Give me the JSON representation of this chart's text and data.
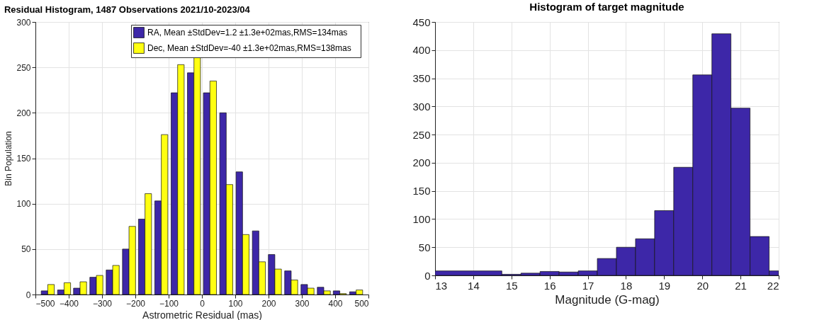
{
  "chart_data": [
    {
      "type": "bar",
      "title": "Residual Histogram, 1487 Observations 2021/10-2023/04",
      "xlabel": "Astrometric Residual (mas)",
      "ylabel": "Bin Population",
      "x": [
        -463,
        -414,
        -366,
        -317,
        -268,
        -219,
        -171,
        -122,
        -73,
        -24,
        24,
        73,
        122,
        171,
        219,
        268,
        317,
        366,
        414,
        463
      ],
      "series": [
        {
          "name": "RA, Mean ±StdDev=1.2   ±1.3e+02mas,RMS=134mas",
          "color": "#3d27a8",
          "values": [
            4,
            5,
            7,
            19,
            27,
            50,
            83,
            103,
            222,
            244,
            222,
            200,
            135,
            70,
            44,
            26,
            11,
            8,
            4,
            3
          ]
        },
        {
          "name": "Dec, Mean  ±StdDev=-40   ±1.3e+02mas,RMS=138mas",
          "color": "#ffff11",
          "values": [
            11,
            13,
            14,
            21,
            32,
            75,
            111,
            176,
            253,
            262,
            235,
            121,
            66,
            36,
            28,
            16,
            7,
            4,
            1,
            5
          ]
        }
      ],
      "xlim": [
        -500,
        500
      ],
      "xticks": [
        -500,
        -400,
        -300,
        -200,
        -100,
        0,
        100,
        200,
        300,
        400,
        500
      ],
      "ylim": [
        0,
        300
      ],
      "yticks": [
        0,
        50,
        100,
        150,
        200,
        250,
        300
      ],
      "grid": true,
      "legend": "top right"
    },
    {
      "type": "histogram",
      "title": "Histogram of target magnitude",
      "xlabel": "Magnitude (G-mag)",
      "color": "#3d27a8",
      "bins": [
        13,
        14.75,
        15.25,
        15.75,
        16.25,
        16.75,
        17.25,
        17.75,
        18.25,
        18.75,
        19.25,
        19.75,
        20.25,
        20.75,
        21.25,
        21.75,
        22
      ],
      "values": [
        8,
        2,
        4,
        7,
        6,
        8,
        30,
        50,
        65,
        115,
        192,
        356,
        429,
        297,
        69,
        8
      ],
      "xlim": [
        13,
        22
      ],
      "xticks": [
        13,
        14,
        15,
        16,
        17,
        18,
        19,
        20,
        21,
        22
      ],
      "ylim": [
        0,
        450
      ],
      "yticks": [
        0,
        50,
        100,
        150,
        200,
        250,
        300,
        350,
        400,
        450
      ],
      "grid": true
    }
  ]
}
